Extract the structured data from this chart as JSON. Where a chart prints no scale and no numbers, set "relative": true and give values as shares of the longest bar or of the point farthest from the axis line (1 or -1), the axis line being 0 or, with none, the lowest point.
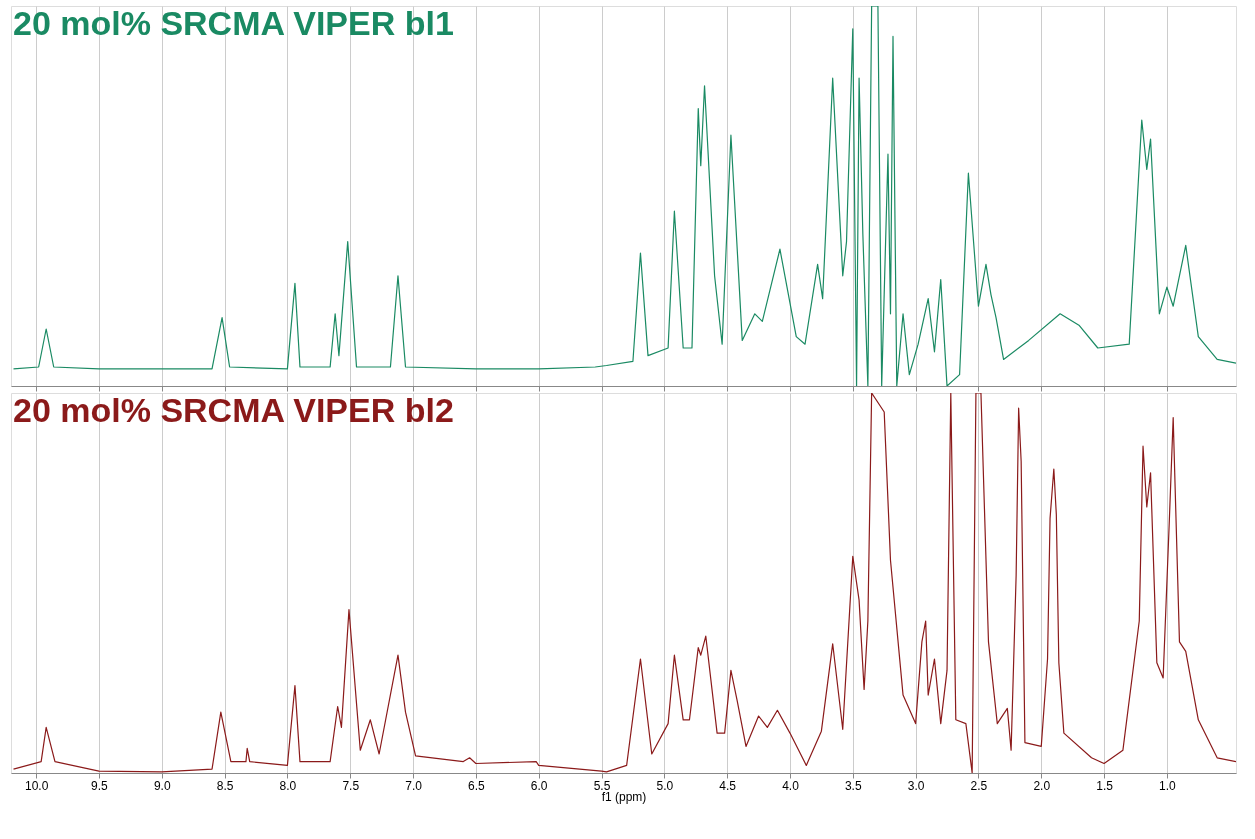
{
  "chart_data": [
    {
      "type": "line",
      "relative": true,
      "xlim": [
        10.2,
        0.45
      ],
      "tick_labels": false,
      "grid": "x",
      "xticks": [
        10,
        9.5,
        9,
        8.5,
        8,
        7.5,
        7,
        6.5,
        6,
        5.5,
        5,
        4.5,
        4,
        3.5,
        3,
        2.5,
        2,
        1.5,
        1
      ],
      "series": [
        {
          "name": "20 mol% SRCMA VIPER bl1",
          "color": "#1a8a63",
          "x": [
            10.18,
            9.98,
            9.92,
            9.86,
            9.5,
            9.0,
            8.6,
            8.52,
            8.46,
            8.0,
            7.94,
            7.9,
            7.66,
            7.62,
            7.59,
            7.52,
            7.45,
            7.18,
            7.12,
            7.06,
            6.5,
            6.0,
            5.55,
            5.46,
            5.25,
            5.19,
            5.13,
            4.97,
            4.92,
            4.85,
            4.78,
            4.73,
            4.71,
            4.68,
            4.6,
            4.54,
            4.47,
            4.38,
            4.28,
            4.22,
            4.08,
            3.95,
            3.88,
            3.78,
            3.74,
            3.66,
            3.58,
            3.55,
            3.5,
            3.47,
            3.45,
            3.42,
            3.38,
            3.35,
            3.3,
            3.27,
            3.22,
            3.2,
            3.18,
            3.15,
            3.1,
            3.05,
            2.98,
            2.9,
            2.85,
            2.8,
            2.75,
            2.65,
            2.58,
            2.5,
            2.44,
            2.4,
            2.36,
            2.3,
            2.1,
            1.85,
            1.7,
            1.55,
            1.3,
            1.2,
            1.16,
            1.13,
            1.06,
            1.0,
            0.95,
            0.85,
            0.75,
            0.6,
            0.45
          ],
          "values": [
            0.045,
            0.05,
            0.15,
            0.05,
            0.045,
            0.045,
            0.045,
            0.18,
            0.05,
            0.045,
            0.27,
            0.05,
            0.05,
            0.19,
            0.08,
            0.38,
            0.05,
            0.05,
            0.29,
            0.05,
            0.045,
            0.045,
            0.05,
            0.054,
            0.065,
            0.35,
            0.08,
            0.1,
            0.46,
            0.1,
            0.1,
            0.73,
            0.58,
            0.79,
            0.29,
            0.11,
            0.66,
            0.12,
            0.19,
            0.17,
            0.36,
            0.13,
            0.11,
            0.32,
            0.23,
            0.81,
            0.29,
            0.38,
            0.94,
            0.0,
            0.81,
            0.4,
            0.0,
            1.0,
            1.0,
            0.0,
            0.61,
            0.19,
            0.92,
            0.0,
            0.19,
            0.03,
            0.11,
            0.23,
            0.09,
            0.28,
            0.0,
            0.03,
            0.56,
            0.21,
            0.32,
            0.24,
            0.18,
            0.07,
            0.12,
            0.19,
            0.16,
            0.1,
            0.11,
            0.7,
            0.57,
            0.65,
            0.19,
            0.26,
            0.21,
            0.37,
            0.13,
            0.07,
            0.06
          ]
        }
      ]
    },
    {
      "type": "line",
      "relative": true,
      "xlim": [
        10.2,
        0.45
      ],
      "xlabel": "f1 (ppm)",
      "grid": "x",
      "xticks": [
        {
          "value": 10,
          "label": "10.0"
        },
        9.5,
        {
          "value": 9,
          "label": "9.0"
        },
        8.5,
        {
          "value": 8,
          "label": "8.0"
        },
        7.5,
        {
          "value": 7,
          "label": "7.0"
        },
        6.5,
        {
          "value": 6,
          "label": "6.0"
        },
        5.5,
        {
          "value": 5,
          "label": "5.0"
        },
        4.5,
        {
          "value": 4,
          "label": "4.0"
        },
        3.5,
        {
          "value": 3,
          "label": "3.0"
        },
        2.5,
        {
          "value": 2,
          "label": "2.0"
        },
        1.5,
        {
          "value": 1,
          "label": "1.0"
        }
      ],
      "series": [
        {
          "name": "20 mol% SRCMA VIPER bl2",
          "color": "#8b1a1a",
          "x": [
            10.18,
            9.96,
            9.92,
            9.85,
            9.5,
            9.0,
            8.6,
            8.53,
            8.45,
            8.33,
            8.32,
            8.3,
            8.0,
            7.94,
            7.9,
            7.75,
            7.66,
            7.6,
            7.57,
            7.51,
            7.42,
            7.34,
            7.27,
            7.12,
            7.06,
            6.98,
            6.6,
            6.55,
            6.5,
            6.02,
            6.0,
            5.5,
            5.46,
            5.3,
            5.19,
            5.1,
            4.97,
            4.92,
            4.85,
            4.8,
            4.73,
            4.71,
            4.67,
            4.58,
            4.52,
            4.47,
            4.42,
            4.35,
            4.25,
            4.18,
            4.1,
            4.0,
            3.87,
            3.75,
            3.66,
            3.58,
            3.5,
            3.45,
            3.41,
            3.38,
            3.35,
            3.25,
            3.2,
            3.1,
            3.0,
            2.95,
            2.92,
            2.9,
            2.85,
            2.8,
            2.75,
            2.72,
            2.68,
            2.6,
            2.55,
            2.52,
            2.48,
            2.42,
            2.35,
            2.27,
            2.24,
            2.2,
            2.18,
            2.16,
            2.13,
            2.0,
            1.95,
            1.93,
            1.9,
            1.88,
            1.86,
            1.82,
            1.6,
            1.5,
            1.35,
            1.22,
            1.19,
            1.16,
            1.13,
            1.08,
            1.03,
            0.98,
            0.95,
            0.9,
            0.85,
            0.75,
            0.6,
            0.45
          ],
          "values": [
            0.01,
            0.03,
            0.12,
            0.03,
            0.005,
            0.003,
            0.01,
            0.16,
            0.03,
            0.03,
            0.065,
            0.03,
            0.02,
            0.23,
            0.03,
            0.03,
            0.03,
            0.175,
            0.12,
            0.43,
            0.06,
            0.14,
            0.05,
            0.31,
            0.16,
            0.045,
            0.03,
            0.04,
            0.025,
            0.03,
            0.02,
            0.005,
            0.003,
            0.02,
            0.3,
            0.05,
            0.13,
            0.31,
            0.14,
            0.14,
            0.33,
            0.31,
            0.36,
            0.105,
            0.105,
            0.27,
            0.19,
            0.07,
            0.15,
            0.12,
            0.165,
            0.105,
            0.02,
            0.11,
            0.34,
            0.115,
            0.57,
            0.455,
            0.22,
            0.4,
            1.0,
            0.95,
            0.56,
            0.205,
            0.13,
            0.345,
            0.4,
            0.205,
            0.3,
            0.13,
            0.27,
            1.0,
            0.14,
            0.13,
            0.0,
            1.0,
            1.0,
            0.345,
            0.13,
            0.17,
            0.06,
            0.52,
            0.96,
            0.82,
            0.08,
            0.07,
            0.3,
            0.67,
            0.8,
            0.68,
            0.29,
            0.105,
            0.04,
            0.025,
            0.06,
            0.4,
            0.86,
            0.7,
            0.79,
            0.29,
            0.25,
            0.67,
            0.935,
            0.345,
            0.32,
            0.14,
            0.04,
            0.03
          ]
        }
      ]
    }
  ]
}
